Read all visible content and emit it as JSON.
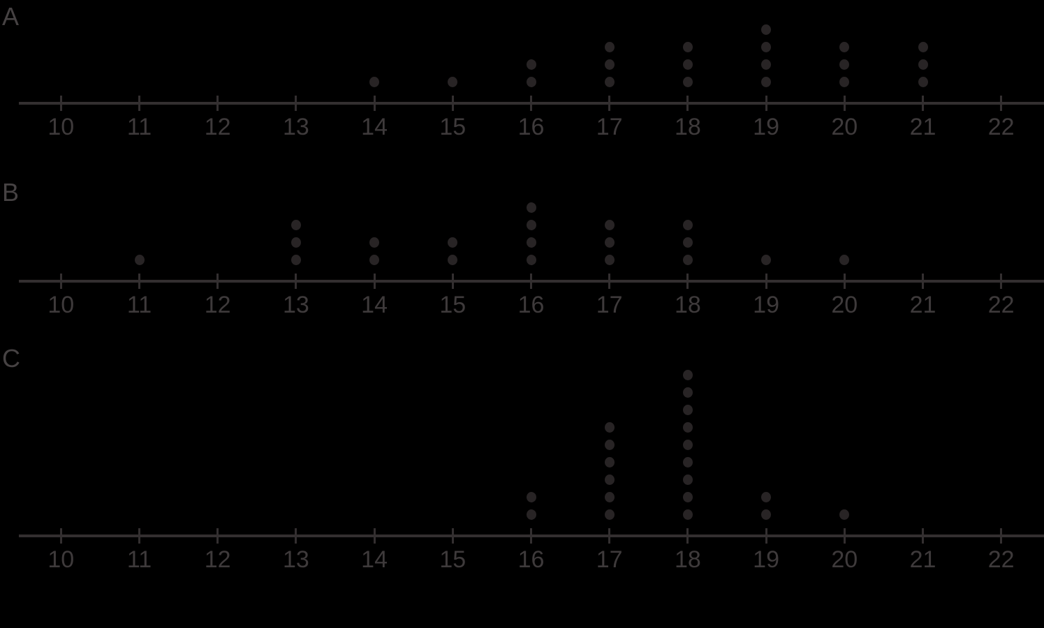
{
  "figure": {
    "description": "Three dot plots labeled A, B, and C, each on a number line from 10 to 22",
    "background_color": "#000000"
  },
  "colors": {
    "dot": "#282425",
    "axis": "#332f30",
    "tick_label": "#3e3a3b",
    "plot_label": "#464243"
  },
  "axis": {
    "min": 10,
    "max": 22,
    "tick_labels": [
      "10",
      "11",
      "12",
      "13",
      "14",
      "15",
      "16",
      "17",
      "18",
      "19",
      "20",
      "21",
      "22"
    ]
  },
  "chart_data": [
    {
      "type": "dotplot",
      "label": "A",
      "axis_range": [
        10,
        22
      ],
      "tick_labels": [
        "10",
        "11",
        "12",
        "13",
        "14",
        "15",
        "16",
        "17",
        "18",
        "19",
        "20",
        "21",
        "22"
      ],
      "points": [
        {
          "x": 14,
          "count": 1
        },
        {
          "x": 15,
          "count": 1
        },
        {
          "x": 16,
          "count": 2
        },
        {
          "x": 17,
          "count": 3
        },
        {
          "x": 18,
          "count": 3
        },
        {
          "x": 19,
          "count": 4
        },
        {
          "x": 20,
          "count": 3
        },
        {
          "x": 21,
          "count": 3
        }
      ]
    },
    {
      "type": "dotplot",
      "label": "B",
      "axis_range": [
        10,
        22
      ],
      "tick_labels": [
        "10",
        "11",
        "12",
        "13",
        "14",
        "15",
        "16",
        "17",
        "18",
        "19",
        "20",
        "21",
        "22"
      ],
      "points": [
        {
          "x": 11,
          "count": 1
        },
        {
          "x": 13,
          "count": 3
        },
        {
          "x": 14,
          "count": 2
        },
        {
          "x": 15,
          "count": 2
        },
        {
          "x": 16,
          "count": 4
        },
        {
          "x": 17,
          "count": 3
        },
        {
          "x": 18,
          "count": 3
        },
        {
          "x": 19,
          "count": 1
        },
        {
          "x": 20,
          "count": 1
        }
      ]
    },
    {
      "type": "dotplot",
      "label": "C",
      "axis_range": [
        10,
        22
      ],
      "tick_labels": [
        "10",
        "11",
        "12",
        "13",
        "14",
        "15",
        "16",
        "17",
        "18",
        "19",
        "20",
        "21",
        "22"
      ],
      "points": [
        {
          "x": 16,
          "count": 2
        },
        {
          "x": 17,
          "count": 6
        },
        {
          "x": 18,
          "count": 9
        },
        {
          "x": 19,
          "count": 2
        },
        {
          "x": 20,
          "count": 1
        }
      ]
    }
  ]
}
